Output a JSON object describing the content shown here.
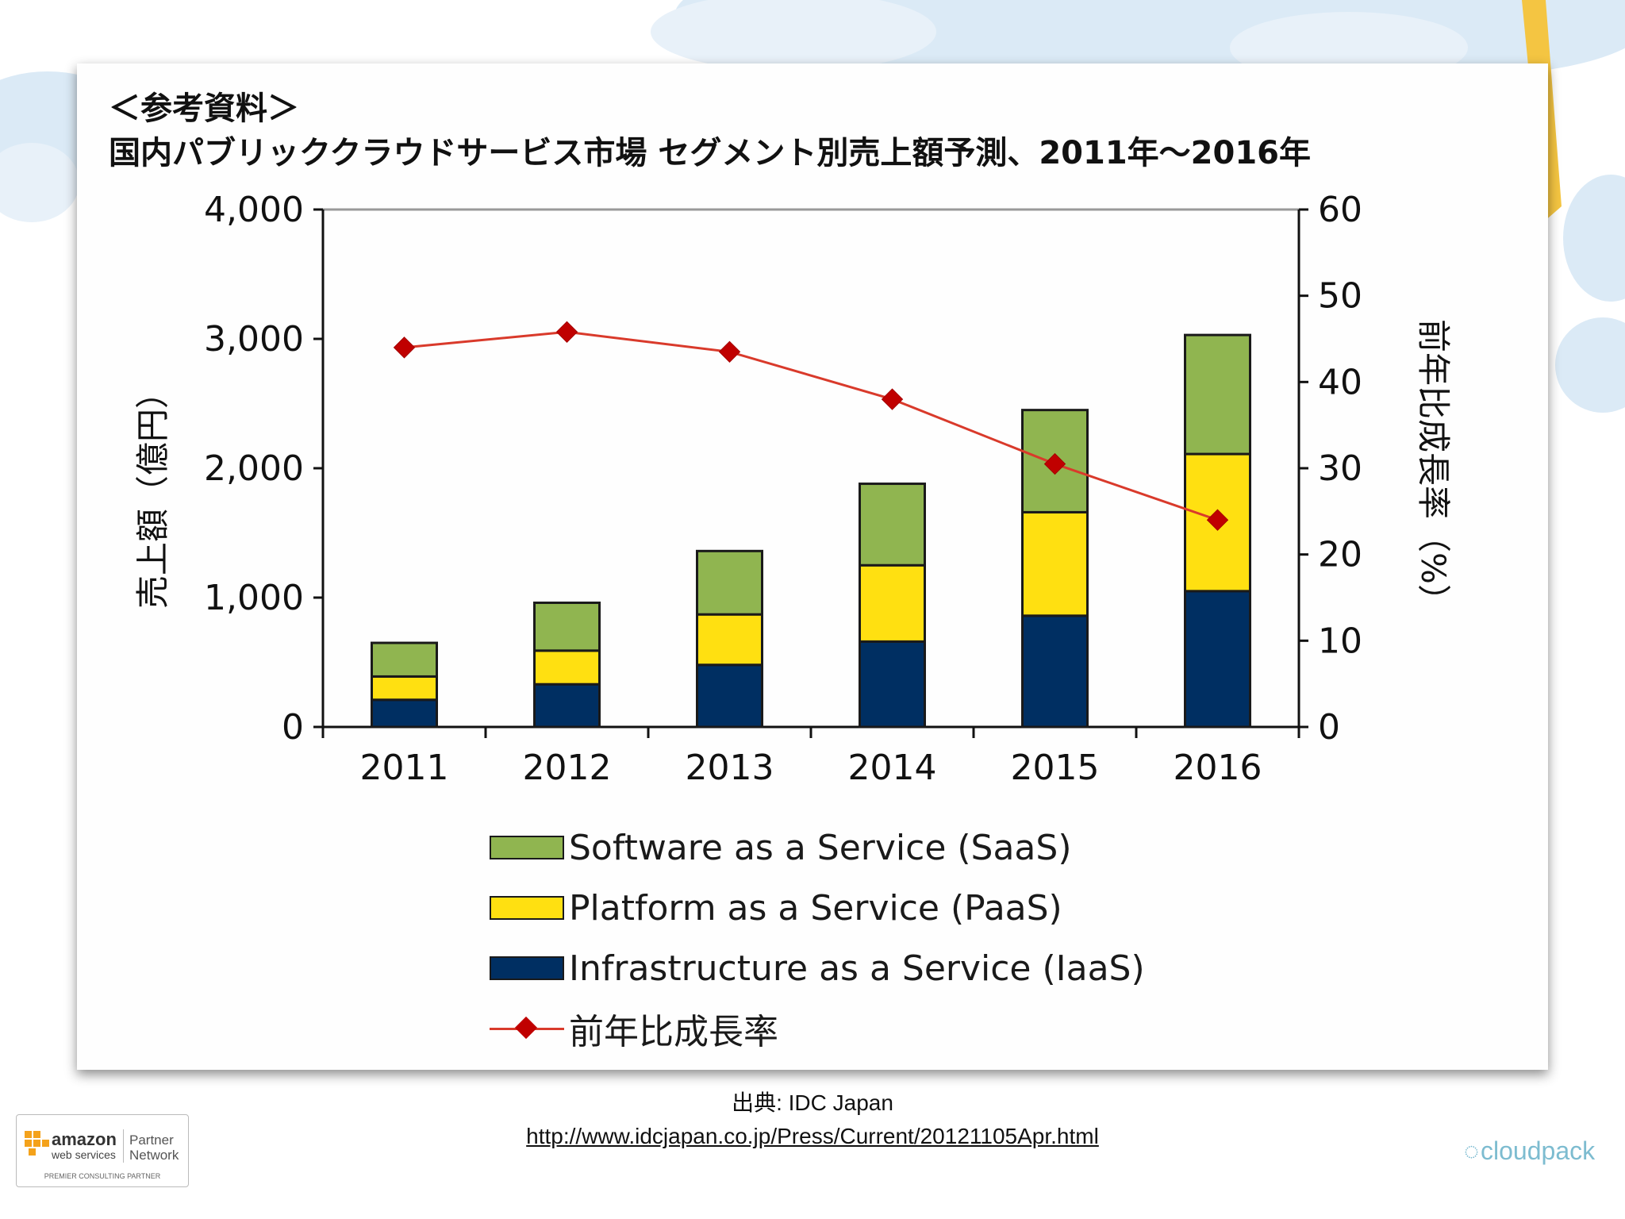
{
  "slide": {
    "heading": "＜参考資料＞",
    "title": "国内パブリッククラウドサービス市場 セグメント別売上額予測、2011年〜2016年"
  },
  "chart_data": {
    "type": "bar",
    "stacked": true,
    "categories": [
      "2011",
      "2012",
      "2013",
      "2014",
      "2015",
      "2016"
    ],
    "series": [
      {
        "name": "Infrastructure as a Service (IaaS)",
        "axis": "left",
        "color": "#002f62",
        "values": [
          210,
          330,
          480,
          660,
          860,
          1050
        ]
      },
      {
        "name": "Platform as a Service (PaaS)",
        "axis": "left",
        "color": "#ffe011",
        "values": [
          180,
          260,
          390,
          590,
          800,
          1060
        ]
      },
      {
        "name": "Software as a Service (SaaS)",
        "axis": "left",
        "color": "#90b550",
        "values": [
          260,
          370,
          490,
          630,
          790,
          920
        ]
      }
    ],
    "line_series": {
      "name": "前年比成長率",
      "type": "line",
      "axis": "right",
      "color": "#d93a2b",
      "marker": "diamond",
      "marker_color": "#c00000",
      "values": [
        44,
        45.8,
        43.5,
        38,
        30.5,
        24
      ]
    },
    "ylabel": "売上額（億円）",
    "y2label": "前年比成長率（%）",
    "ylim": [
      0,
      4000
    ],
    "y2lim": [
      0,
      60
    ],
    "yticks": [
      "0",
      "1,000",
      "2,000",
      "3,000",
      "4,000"
    ],
    "y2ticks": [
      "0",
      "10",
      "20",
      "30",
      "40",
      "50",
      "60"
    ],
    "grid": false,
    "legend_position": "bottom",
    "legend": [
      {
        "label": "Software as a Service (SaaS)",
        "color": "#90b550"
      },
      {
        "label": "Platform as a Service (PaaS)",
        "color": "#ffe011"
      },
      {
        "label": "Infrastructure as a Service (IaaS)",
        "color": "#002f62"
      },
      {
        "label": "前年比成長率",
        "color": "#d93a2b"
      }
    ]
  },
  "source": {
    "label": "出典: IDC Japan",
    "url": "http://www.idcjapan.co.jp/Press/Current/20121105Apr.html"
  },
  "footer": {
    "aws_amazon": "amazon",
    "aws_webservices": "web services",
    "aws_partner": "Partner Network",
    "aws_tier": "PREMIER CONSULTING PARTNER",
    "brand": "cloudpack"
  }
}
